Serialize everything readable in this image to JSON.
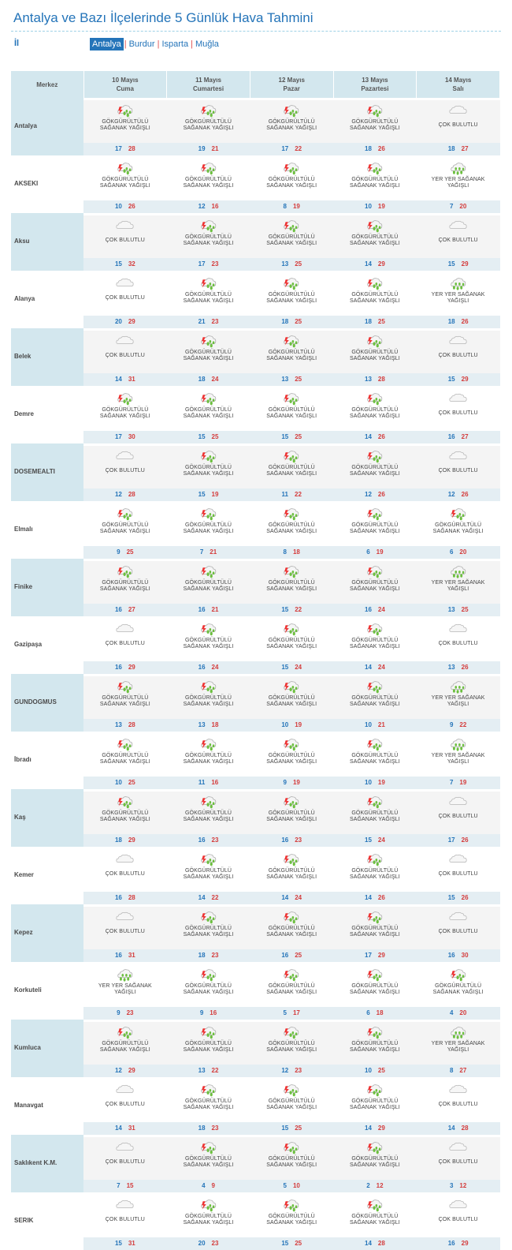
{
  "header": {
    "title": "Antalya ve Bazı İlçelerinde 5 Günlük Hava Tahmini",
    "il_label": "İl",
    "provinces": [
      "Antalya",
      "Burdur",
      "Isparta",
      "Muğla"
    ],
    "active_province": "Antalya"
  },
  "table": {
    "merkez_label": "Merkez",
    "days": [
      {
        "date": "10 Mayıs",
        "day": "Cuma"
      },
      {
        "date": "11 Mayıs",
        "day": "Cumartesi"
      },
      {
        "date": "12 Mayıs",
        "day": "Pazar"
      },
      {
        "date": "13 Mayıs",
        "day": "Pazartesi"
      },
      {
        "date": "14 Mayıs",
        "day": "Salı"
      }
    ],
    "conditions": {
      "G": {
        "line1": "GÖKGÜRÜLTÜLÜ",
        "line2": "SAĞANAK YAĞIŞLI",
        "icon": "thunderstorm-rain-icon"
      },
      "C": {
        "line1": "ÇOK BULUTLU",
        "line2": "",
        "icon": "cloudy-icon"
      },
      "Y": {
        "line1": "YER YER SAĞANAK",
        "line2": "YAĞIŞLI",
        "icon": "scattered-showers-icon"
      }
    },
    "rows": [
      {
        "city": "Antalya",
        "f": [
          [
            "G",
            17,
            28
          ],
          [
            "G",
            19,
            21
          ],
          [
            "G",
            17,
            22
          ],
          [
            "G",
            18,
            26
          ],
          [
            "C",
            18,
            27
          ]
        ]
      },
      {
        "city": "AKSEKI",
        "f": [
          [
            "G",
            10,
            26
          ],
          [
            "G",
            12,
            16
          ],
          [
            "G",
            8,
            19
          ],
          [
            "G",
            10,
            19
          ],
          [
            "Y",
            7,
            20
          ]
        ]
      },
      {
        "city": "Aksu",
        "f": [
          [
            "C",
            15,
            32
          ],
          [
            "G",
            17,
            23
          ],
          [
            "G",
            13,
            25
          ],
          [
            "G",
            14,
            29
          ],
          [
            "C",
            15,
            29
          ]
        ]
      },
      {
        "city": "Alanya",
        "f": [
          [
            "C",
            20,
            29
          ],
          [
            "G",
            21,
            23
          ],
          [
            "G",
            18,
            25
          ],
          [
            "G",
            18,
            25
          ],
          [
            "Y",
            18,
            26
          ]
        ]
      },
      {
        "city": "Belek",
        "f": [
          [
            "C",
            14,
            31
          ],
          [
            "G",
            18,
            24
          ],
          [
            "G",
            13,
            25
          ],
          [
            "G",
            13,
            28
          ],
          [
            "C",
            15,
            29
          ]
        ]
      },
      {
        "city": "Demre",
        "f": [
          [
            "G",
            17,
            30
          ],
          [
            "G",
            15,
            25
          ],
          [
            "G",
            15,
            25
          ],
          [
            "G",
            14,
            26
          ],
          [
            "C",
            16,
            27
          ]
        ]
      },
      {
        "city": "DOSEMEALTI",
        "f": [
          [
            "C",
            12,
            28
          ],
          [
            "G",
            15,
            19
          ],
          [
            "G",
            11,
            22
          ],
          [
            "G",
            12,
            26
          ],
          [
            "C",
            12,
            26
          ]
        ]
      },
      {
        "city": "Elmalı",
        "f": [
          [
            "G",
            9,
            25
          ],
          [
            "G",
            7,
            21
          ],
          [
            "G",
            8,
            18
          ],
          [
            "G",
            6,
            19
          ],
          [
            "G",
            6,
            20
          ]
        ]
      },
      {
        "city": "Finike",
        "f": [
          [
            "G",
            16,
            27
          ],
          [
            "G",
            16,
            21
          ],
          [
            "G",
            15,
            22
          ],
          [
            "G",
            16,
            24
          ],
          [
            "Y",
            13,
            25
          ]
        ]
      },
      {
        "city": "Gazipaşa",
        "f": [
          [
            "C",
            16,
            29
          ],
          [
            "G",
            16,
            24
          ],
          [
            "G",
            15,
            24
          ],
          [
            "G",
            14,
            24
          ],
          [
            "C",
            13,
            26
          ]
        ]
      },
      {
        "city": "GUNDOGMUS",
        "f": [
          [
            "G",
            13,
            28
          ],
          [
            "G",
            13,
            18
          ],
          [
            "G",
            10,
            19
          ],
          [
            "G",
            10,
            21
          ],
          [
            "Y",
            9,
            22
          ]
        ]
      },
      {
        "city": "İbradı",
        "f": [
          [
            "G",
            10,
            25
          ],
          [
            "G",
            11,
            16
          ],
          [
            "G",
            9,
            19
          ],
          [
            "G",
            10,
            19
          ],
          [
            "Y",
            7,
            19
          ]
        ]
      },
      {
        "city": "Kaş",
        "f": [
          [
            "G",
            18,
            29
          ],
          [
            "G",
            16,
            23
          ],
          [
            "G",
            16,
            23
          ],
          [
            "G",
            15,
            24
          ],
          [
            "C",
            17,
            26
          ]
        ]
      },
      {
        "city": "Kemer",
        "f": [
          [
            "C",
            16,
            28
          ],
          [
            "G",
            14,
            22
          ],
          [
            "G",
            14,
            24
          ],
          [
            "G",
            14,
            26
          ],
          [
            "C",
            15,
            26
          ]
        ]
      },
      {
        "city": "Kepez",
        "f": [
          [
            "C",
            16,
            31
          ],
          [
            "G",
            18,
            23
          ],
          [
            "G",
            16,
            25
          ],
          [
            "G",
            17,
            29
          ],
          [
            "C",
            16,
            30
          ]
        ]
      },
      {
        "city": "Korkuteli",
        "f": [
          [
            "Y",
            9,
            23
          ],
          [
            "G",
            9,
            16
          ],
          [
            "G",
            5,
            17
          ],
          [
            "G",
            6,
            18
          ],
          [
            "G",
            4,
            20
          ]
        ]
      },
      {
        "city": "Kumluca",
        "f": [
          [
            "G",
            12,
            29
          ],
          [
            "G",
            13,
            22
          ],
          [
            "G",
            12,
            23
          ],
          [
            "G",
            10,
            25
          ],
          [
            "Y",
            8,
            27
          ]
        ]
      },
      {
        "city": "Manavgat",
        "f": [
          [
            "C",
            14,
            31
          ],
          [
            "G",
            18,
            23
          ],
          [
            "G",
            15,
            25
          ],
          [
            "G",
            14,
            29
          ],
          [
            "C",
            14,
            28
          ]
        ]
      },
      {
        "city": "Saklıkent K.M.",
        "f": [
          [
            "C",
            7,
            15
          ],
          [
            "G",
            4,
            9
          ],
          [
            "G",
            5,
            10
          ],
          [
            "G",
            2,
            12
          ],
          [
            "C",
            3,
            12
          ]
        ]
      },
      {
        "city": "SERIK",
        "f": [
          [
            "C",
            15,
            31
          ],
          [
            "G",
            20,
            23
          ],
          [
            "G",
            15,
            25
          ],
          [
            "G",
            14,
            28
          ],
          [
            "C",
            16,
            29
          ]
        ]
      }
    ]
  }
}
